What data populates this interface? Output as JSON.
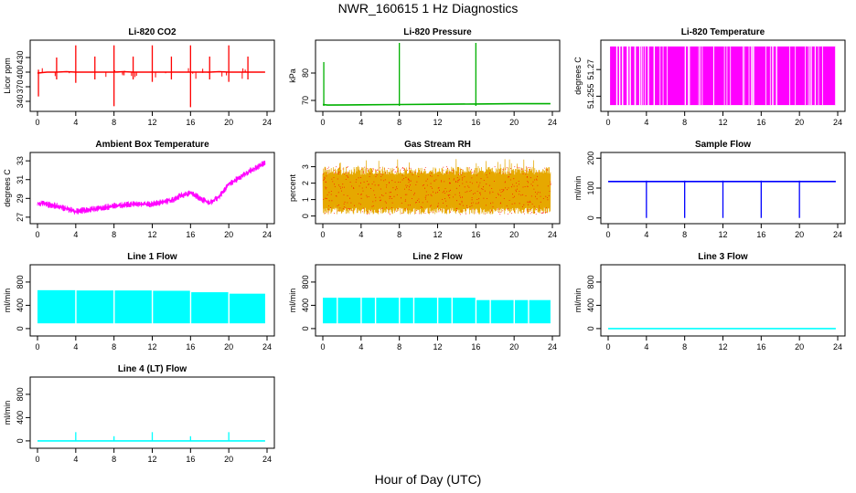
{
  "title": "NWR_160615  1 Hz Diagnostics",
  "xlabel": "Hour of Day (UTC)",
  "chart_data": [
    {
      "type": "line",
      "title": "Li-820 CO2",
      "ylabel": "Licor ppm",
      "color": "#ff0000",
      "xlim": [
        0,
        24
      ],
      "ylim": [
        325,
        460
      ],
      "yticks": [
        340,
        370,
        400,
        430
      ],
      "xticks": [
        0,
        4,
        8,
        12,
        16,
        20,
        24
      ],
      "x": [
        0,
        0.5,
        1,
        2,
        3,
        4,
        5,
        6,
        7,
        8,
        9,
        10,
        11,
        12,
        13,
        14,
        15,
        16,
        17,
        18,
        19,
        20,
        21,
        22,
        23,
        23.8
      ],
      "y": [
        398,
        399,
        400,
        400,
        401,
        400,
        400,
        400,
        400,
        400,
        401,
        400,
        400,
        400,
        400,
        400,
        400,
        400,
        400,
        400,
        401,
        400,
        400,
        400,
        400,
        400
      ],
      "spikes": [
        {
          "x": 0.1,
          "low": 350,
          "high": 405
        },
        {
          "x": 2.0,
          "low": 385,
          "high": 430
        },
        {
          "x": 4.0,
          "low": 378,
          "high": 455
        },
        {
          "x": 6.0,
          "low": 385,
          "high": 432
        },
        {
          "x": 8.0,
          "low": 330,
          "high": 455
        },
        {
          "x": 10.0,
          "low": 385,
          "high": 432
        },
        {
          "x": 12.0,
          "low": 380,
          "high": 455
        },
        {
          "x": 14.0,
          "low": 385,
          "high": 432
        },
        {
          "x": 16.0,
          "low": 328,
          "high": 455
        },
        {
          "x": 18.0,
          "low": 385,
          "high": 432
        },
        {
          "x": 20.0,
          "low": 380,
          "high": 455
        },
        {
          "x": 22.0,
          "low": 385,
          "high": 432
        }
      ]
    },
    {
      "type": "line",
      "title": "Li-820 Pressure",
      "ylabel": "kPa",
      "color": "#00b000",
      "xlim": [
        0,
        24
      ],
      "ylim": [
        67,
        91
      ],
      "yticks": [
        70,
        80
      ],
      "xticks": [
        0,
        4,
        8,
        12,
        16,
        20,
        24
      ],
      "x": [
        0,
        0.5,
        4,
        8,
        12,
        16,
        20,
        23.8
      ],
      "y": [
        68.5,
        68.3,
        68.4,
        68.5,
        68.6,
        68.7,
        68.8,
        68.8
      ],
      "spikes": [
        {
          "x": 0.1,
          "low": 68,
          "high": 84
        },
        {
          "x": 8.0,
          "low": 68,
          "high": 91
        },
        {
          "x": 16.0,
          "low": 68,
          "high": 91
        }
      ]
    },
    {
      "type": "area",
      "title": "Li-820 Temperature",
      "ylabel": "degrees C",
      "color": "#ff00ff",
      "xlim": [
        0,
        24
      ],
      "ylim": [
        51.248,
        51.285
      ],
      "yticks": [
        51.255,
        51.27
      ],
      "xticks": [
        0,
        4,
        8,
        12,
        16,
        20,
        24
      ],
      "band_low": 51.25,
      "band_high": 51.283,
      "x_start": 0.2,
      "x_end": 23.8,
      "gaps": [
        0.9,
        1.2,
        1.5,
        2.0,
        2.3,
        2.8,
        3.3,
        4.2,
        4.8,
        8.4,
        15.0,
        17.2,
        17.6
      ]
    },
    {
      "type": "line",
      "title": "Ambient Box Temperature",
      "ylabel": "degrees C",
      "color": "#ff00ff",
      "xlim": [
        0,
        24
      ],
      "ylim": [
        26.6,
        33.6
      ],
      "yticks": [
        27,
        29,
        31,
        33
      ],
      "xticks": [
        0,
        4,
        8,
        12,
        16,
        20,
        24
      ],
      "x": [
        0,
        2,
        4,
        6,
        8,
        10,
        12,
        14,
        15,
        16,
        17,
        18,
        19,
        20,
        22,
        23.8
      ],
      "y": [
        28.5,
        28.2,
        27.6,
        27.9,
        28.2,
        28.4,
        28.4,
        28.8,
        29.3,
        29.6,
        29.0,
        28.5,
        29.2,
        30.5,
        31.8,
        32.8
      ],
      "noise": 0.35
    },
    {
      "type": "line",
      "title": "Gas Stream RH",
      "ylabel": "percent",
      "color": "#e6a800",
      "marker_color": "#ff0000",
      "xlim": [
        0,
        24
      ],
      "ylim": [
        -0.3,
        3.7
      ],
      "yticks": [
        0,
        1,
        2,
        3
      ],
      "xticks": [
        0,
        4,
        8,
        12,
        16,
        20,
        24
      ],
      "band_low": 0.1,
      "band_high": 3.0,
      "x_start": 0,
      "x_end": 23.8
    },
    {
      "type": "line",
      "title": "Sample Flow",
      "ylabel": "ml/min",
      "color": "#0000ff",
      "xlim": [
        0,
        24
      ],
      "ylim": [
        -10,
        210
      ],
      "yticks": [
        0,
        100,
        200
      ],
      "xticks": [
        0,
        4,
        8,
        12,
        16,
        20,
        24
      ],
      "x": [
        0,
        23.8
      ],
      "y": [
        122,
        122
      ],
      "spikes": [
        {
          "x": 4.0,
          "low": 0,
          "high": 125
        },
        {
          "x": 8.0,
          "low": 0,
          "high": 125
        },
        {
          "x": 12.0,
          "low": 0,
          "high": 125
        },
        {
          "x": 16.0,
          "low": 0,
          "high": 125
        },
        {
          "x": 20.0,
          "low": 0,
          "high": 125
        }
      ]
    },
    {
      "type": "area",
      "title": "Line 1 Flow",
      "ylabel": "ml/min",
      "color": "#00ffff",
      "xlim": [
        0,
        24
      ],
      "ylim": [
        -80,
        1050
      ],
      "yticks": [
        0,
        400,
        800
      ],
      "xticks": [
        0,
        4,
        8,
        12,
        16,
        20,
        24
      ],
      "band_low": 90,
      "segments": [
        {
          "x0": 0,
          "x1": 4,
          "high": 660
        },
        {
          "x0": 4,
          "x1": 8,
          "high": 655
        },
        {
          "x0": 8,
          "x1": 12,
          "high": 655
        },
        {
          "x0": 12,
          "x1": 16,
          "high": 650
        },
        {
          "x0": 16,
          "x1": 20,
          "high": 625
        },
        {
          "x0": 20,
          "x1": 23.8,
          "high": 600
        }
      ],
      "gaps": [
        4.0,
        8.0,
        12.0,
        16.0,
        20.0
      ]
    },
    {
      "type": "area",
      "title": "Line 2 Flow",
      "ylabel": "ml/min",
      "color": "#00ffff",
      "xlim": [
        0,
        24
      ],
      "ylim": [
        -80,
        1050
      ],
      "yticks": [
        0,
        400,
        800
      ],
      "xticks": [
        0,
        4,
        8,
        12,
        16,
        20,
        24
      ],
      "band_low": 90,
      "segments": [
        {
          "x0": 0,
          "x1": 16,
          "high": 530
        },
        {
          "x0": 16,
          "x1": 23.8,
          "high": 490
        }
      ],
      "gaps": [
        1.5,
        4.0,
        5.5,
        8.0,
        9.5,
        12.0,
        13.5,
        16.0,
        17.5,
        20.0,
        21.5
      ]
    },
    {
      "type": "line",
      "title": "Line 3 Flow",
      "ylabel": "ml/min",
      "color": "#00ffff",
      "xlim": [
        0,
        24
      ],
      "ylim": [
        -80,
        1050
      ],
      "yticks": [
        0,
        400,
        800
      ],
      "xticks": [
        0,
        4,
        8,
        12,
        16,
        20,
        24
      ],
      "x": [
        0,
        23.8
      ],
      "y": [
        0,
        0
      ]
    },
    {
      "type": "line",
      "title": "Line 4 (LT) Flow",
      "ylabel": "ml/min",
      "color": "#00ffff",
      "xlim": [
        0,
        24
      ],
      "ylim": [
        -80,
        1050
      ],
      "yticks": [
        0,
        400,
        800
      ],
      "xticks": [
        0,
        4,
        8,
        12,
        16,
        20,
        24
      ],
      "x": [
        0,
        23.8
      ],
      "y": [
        0,
        0
      ],
      "spikes": [
        {
          "x": 4.0,
          "low": 0,
          "high": 150
        },
        {
          "x": 8.0,
          "low": 0,
          "high": 80
        },
        {
          "x": 12.0,
          "low": 0,
          "high": 150
        },
        {
          "x": 16.0,
          "low": 0,
          "high": 80
        },
        {
          "x": 20.0,
          "low": 0,
          "high": 150
        }
      ]
    }
  ]
}
